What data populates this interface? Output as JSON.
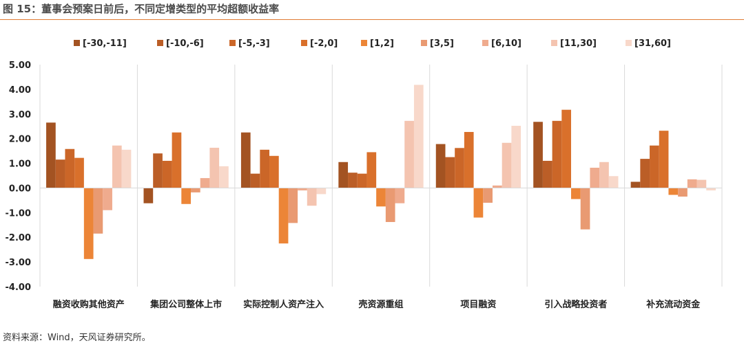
{
  "title": "图 15：董事会预案日前后，不同定增类型的平均超额收益率",
  "source": "资料来源：Wind，天风证券研究所。",
  "chart_data": {
    "type": "bar",
    "categories": [
      "融资收购其他资产",
      "集团公司整体上市",
      "实际控制人资产注入",
      "壳资源重组",
      "项目融资",
      "引入战略投资者",
      "补充流动资金"
    ],
    "ylim": [
      -4,
      5
    ],
    "yticks": [
      "5.00",
      "4.00",
      "3.00",
      "2.00",
      "1.00",
      "0.00",
      "-1.00",
      "-2.00",
      "-3.00",
      "-4.00"
    ],
    "grid": "vertical category separators",
    "legend_position": "top",
    "series": [
      {
        "name": "[-30,-11]",
        "color": "#a35322",
        "values": [
          2.65,
          -0.62,
          2.25,
          1.05,
          1.78,
          2.68,
          0.25
        ]
      },
      {
        "name": "[-10,-6]",
        "color": "#bb5e27",
        "values": [
          1.15,
          1.4,
          0.58,
          0.62,
          1.25,
          1.1,
          1.18
        ]
      },
      {
        "name": "[-5,-3]",
        "color": "#cb6628",
        "values": [
          1.58,
          1.1,
          1.55,
          0.58,
          1.62,
          2.72,
          1.72
        ]
      },
      {
        "name": "[-2,0]",
        "color": "#d9702b",
        "values": [
          1.22,
          2.25,
          1.3,
          1.45,
          2.27,
          3.17,
          2.32
        ]
      },
      {
        "name": "[1,2]",
        "color": "#ec8537",
        "values": [
          -2.88,
          -0.65,
          -2.25,
          -0.75,
          -1.2,
          -0.45,
          -0.28
        ]
      },
      {
        "name": "[3,5]",
        "color": "#e99a72",
        "values": [
          -1.85,
          -0.18,
          -1.42,
          -1.38,
          -0.6,
          -1.68,
          -0.35
        ]
      },
      {
        "name": "[6,10]",
        "color": "#efab8e",
        "values": [
          -0.9,
          0.4,
          -0.1,
          -0.62,
          0.1,
          0.82,
          0.35
        ]
      },
      {
        "name": "[11,30]",
        "color": "#f4c4b0",
        "values": [
          1.72,
          1.63,
          -0.72,
          2.72,
          1.83,
          1.05,
          0.33
        ]
      },
      {
        "name": "[31,60]",
        "color": "#f8d8ca",
        "values": [
          1.55,
          0.88,
          -0.25,
          4.18,
          2.52,
          0.48,
          -0.1
        ]
      }
    ]
  }
}
